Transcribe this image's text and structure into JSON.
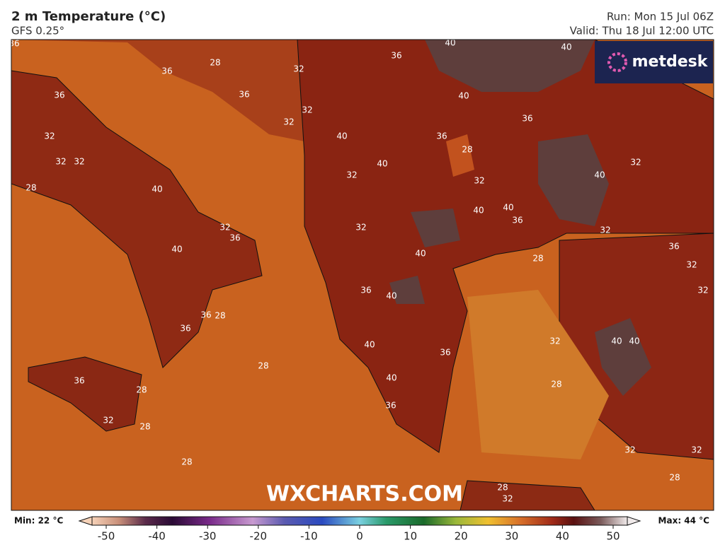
{
  "header": {
    "title": "2 m Temperature (°C)",
    "model": "GFS 0.25°",
    "run": "Run: Mon 15 Jul 06Z",
    "valid": "Valid: Thu 18 Jul 12:00 UTC"
  },
  "logo": "metdesk",
  "watermark": "WXCHARTS.COM",
  "contour_labels": [
    36,
    36,
    28,
    32,
    36,
    40,
    40,
    36,
    36,
    32,
    40,
    32,
    32,
    40,
    36,
    36,
    28,
    32,
    32,
    40,
    32,
    40,
    32,
    28,
    40,
    32,
    40,
    40,
    36,
    32,
    36,
    32,
    32,
    40,
    40,
    36,
    28,
    32,
    36,
    40,
    32,
    36,
    28,
    36,
    40,
    40,
    32,
    40,
    36,
    28,
    36,
    40,
    28,
    28,
    36,
    32,
    28,
    32,
    32,
    28,
    28,
    28,
    32
  ],
  "colorbar": {
    "min_label": "Min: 22 °C",
    "max_label": "Max: 44 °C",
    "ticks": [
      -50,
      -40,
      -30,
      -20,
      -10,
      0,
      10,
      20,
      30,
      40,
      50
    ]
  }
}
